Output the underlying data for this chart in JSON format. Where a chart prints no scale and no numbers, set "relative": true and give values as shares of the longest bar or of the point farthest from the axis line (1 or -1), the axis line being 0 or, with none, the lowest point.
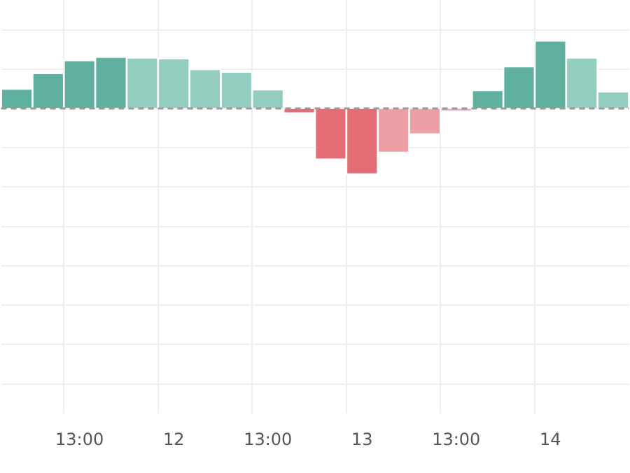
{
  "chart_data": {
    "type": "bar",
    "relative": true,
    "categories": [
      null,
      null,
      "13:00",
      null,
      null,
      "12",
      null,
      null,
      "13:00",
      null,
      null,
      "13",
      null,
      null,
      "13:00",
      null,
      null,
      "14",
      null,
      null
    ],
    "values": [
      0.29,
      0.52,
      0.71,
      0.76,
      0.75,
      0.74,
      0.58,
      0.54,
      0.28,
      -0.07,
      -0.75,
      -0.97,
      -0.65,
      -0.38,
      -0.03,
      0.27,
      0.62,
      1,
      0.75,
      0.25
    ],
    "colors": [
      "#5fb09e",
      "#5fb09e",
      "#5fb09e",
      "#5fb09e",
      "#93cdbf",
      "#93cdbf",
      "#93cdbf",
      "#93cdbf",
      "#93cdbf",
      "#e46d75",
      "#e46d75",
      "#e46d75",
      "#eca0a6",
      "#eca0a6",
      "#eca0a6",
      "#5fb09e",
      "#5fb09e",
      "#5fb09e",
      "#93cdbf",
      "#93cdbf"
    ],
    "ref_lines": [
      {
        "axis": "y",
        "value": 0,
        "color": "#999999",
        "line_style": "dashed"
      }
    ],
    "grid": true,
    "legend": false
  }
}
